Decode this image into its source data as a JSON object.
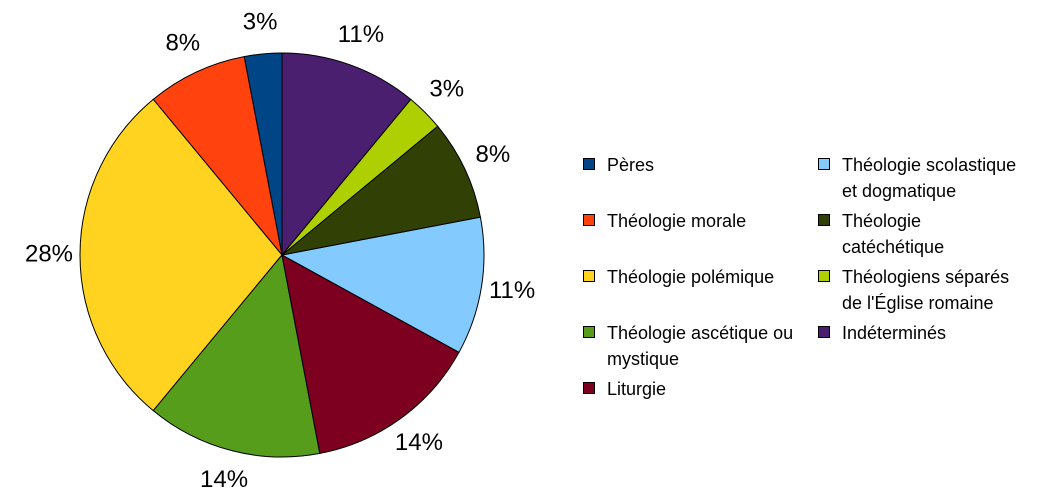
{
  "chart_data": {
    "type": "pie",
    "categories": [
      "Pères",
      "Théologie morale",
      "Théologie polémique",
      "Théologie ascétique ou mystique",
      "Liturgie",
      "Théologie scolastique et dogmatique",
      "Théologie catéchétique",
      "Théologiens séparés de l'Église romaine",
      "Indéterminés"
    ],
    "values": [
      3,
      8,
      28,
      14,
      14,
      11,
      8,
      3,
      11
    ],
    "value_labels": [
      "3%",
      "8%",
      "28%",
      "14%",
      "14%",
      "11%",
      "8%",
      "3%",
      "11%"
    ],
    "colors": [
      "#004586",
      "#ff420e",
      "#ffd320",
      "#579d1c",
      "#7e0021",
      "#83caff",
      "#314004",
      "#aecf00",
      "#4b1f6f"
    ],
    "legend": "right"
  }
}
